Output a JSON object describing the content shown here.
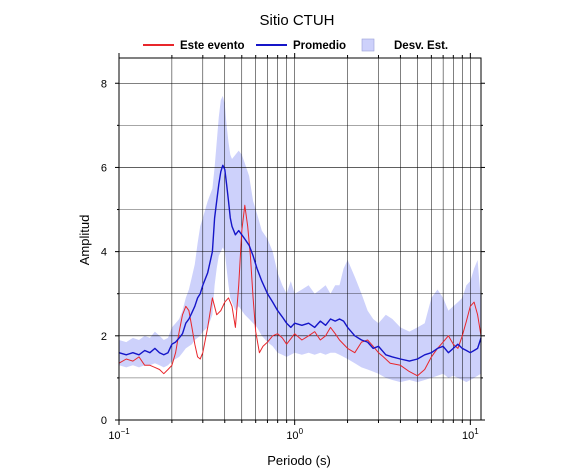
{
  "chart_data": {
    "type": "line",
    "title": "Sitio CTUH",
    "xlabel": "Periodo (s)",
    "ylabel": "Amplitud",
    "x_scale": "log",
    "xlim": [
      0.1,
      11.5
    ],
    "ylim": [
      0,
      8.6
    ],
    "grid": true,
    "legend_position": "top-center",
    "x_ticks": [
      {
        "value": 0.1,
        "base": "10",
        "exp": "−1"
      },
      {
        "value": 1,
        "base": "10",
        "exp": "0"
      },
      {
        "value": 10,
        "base": "10",
        "exp": "1"
      }
    ],
    "y_ticks": [
      {
        "value": 0,
        "label": "0"
      },
      {
        "value": 2,
        "label": "2"
      },
      {
        "value": 4,
        "label": "4"
      },
      {
        "value": 6,
        "label": "6"
      },
      {
        "value": 8,
        "label": "8"
      }
    ],
    "legend": [
      {
        "label": "Este evento",
        "kind": "line",
        "color": "#e8262b"
      },
      {
        "label": "Promedio",
        "kind": "line",
        "color": "#1515c8"
      },
      {
        "label": "Desv. Est.",
        "kind": "band",
        "color": "#cdd1fb"
      }
    ],
    "series": [
      {
        "name": "Este evento",
        "color": "#e8262b",
        "x": [
          0.1,
          0.11,
          0.12,
          0.13,
          0.14,
          0.15,
          0.16,
          0.17,
          0.18,
          0.19,
          0.2,
          0.21,
          0.22,
          0.23,
          0.24,
          0.25,
          0.26,
          0.27,
          0.28,
          0.29,
          0.3,
          0.32,
          0.34,
          0.36,
          0.38,
          0.4,
          0.42,
          0.44,
          0.46,
          0.48,
          0.5,
          0.52,
          0.54,
          0.56,
          0.58,
          0.6,
          0.63,
          0.66,
          0.7,
          0.75,
          0.8,
          0.85,
          0.9,
          1.0,
          1.1,
          1.2,
          1.3,
          1.4,
          1.5,
          1.6,
          1.7,
          1.8,
          2.0,
          2.2,
          2.4,
          2.6,
          2.8,
          3.0,
          3.2,
          3.5,
          4.0,
          4.5,
          5.0,
          5.5,
          6.0,
          6.5,
          7.0,
          7.5,
          8.0,
          8.5,
          9.0,
          9.5,
          10.0,
          10.5,
          11.0,
          11.5
        ],
        "values": [
          1.35,
          1.45,
          1.4,
          1.5,
          1.3,
          1.3,
          1.25,
          1.2,
          1.1,
          1.2,
          1.3,
          1.6,
          2.1,
          2.5,
          2.7,
          2.6,
          2.2,
          1.8,
          1.5,
          1.45,
          1.6,
          2.2,
          2.9,
          2.5,
          2.6,
          2.8,
          2.9,
          2.7,
          2.2,
          3.2,
          4.5,
          5.1,
          4.6,
          3.9,
          2.9,
          2.1,
          1.6,
          1.75,
          1.85,
          2.0,
          2.05,
          1.95,
          1.8,
          2.05,
          1.9,
          2.0,
          2.1,
          1.9,
          2.0,
          2.2,
          2.05,
          1.9,
          1.7,
          1.6,
          1.85,
          1.9,
          1.75,
          1.6,
          1.5,
          1.35,
          1.3,
          1.15,
          1.05,
          1.2,
          1.5,
          1.7,
          1.85,
          2.0,
          1.8,
          1.7,
          2.0,
          2.35,
          2.7,
          2.8,
          2.5,
          2.0
        ]
      },
      {
        "name": "Promedio",
        "color": "#1515c8",
        "x": [
          0.1,
          0.11,
          0.12,
          0.13,
          0.14,
          0.15,
          0.16,
          0.17,
          0.18,
          0.19,
          0.2,
          0.21,
          0.22,
          0.23,
          0.24,
          0.25,
          0.26,
          0.27,
          0.28,
          0.29,
          0.3,
          0.32,
          0.34,
          0.35,
          0.36,
          0.37,
          0.38,
          0.39,
          0.4,
          0.41,
          0.42,
          0.43,
          0.44,
          0.46,
          0.48,
          0.5,
          0.52,
          0.55,
          0.58,
          0.61,
          0.65,
          0.7,
          0.75,
          0.8,
          0.85,
          0.9,
          0.95,
          1.0,
          1.1,
          1.2,
          1.3,
          1.4,
          1.5,
          1.6,
          1.7,
          1.8,
          1.9,
          2.0,
          2.2,
          2.4,
          2.6,
          2.8,
          3.0,
          3.3,
          3.6,
          4.0,
          4.5,
          5.0,
          5.5,
          6.0,
          6.5,
          7.0,
          7.5,
          8.0,
          8.5,
          9.0,
          9.5,
          10.0,
          10.5,
          11.0,
          11.5
        ],
        "values": [
          1.6,
          1.55,
          1.6,
          1.55,
          1.65,
          1.6,
          1.7,
          1.6,
          1.55,
          1.6,
          1.8,
          1.85,
          1.95,
          2.05,
          2.3,
          2.4,
          2.55,
          2.7,
          2.9,
          3.0,
          3.2,
          3.5,
          4.0,
          4.8,
          5.2,
          5.6,
          5.9,
          6.05,
          5.95,
          5.6,
          5.2,
          4.8,
          4.6,
          4.4,
          4.5,
          4.4,
          4.3,
          4.15,
          3.9,
          3.6,
          3.3,
          3.0,
          2.8,
          2.6,
          2.45,
          2.3,
          2.2,
          2.3,
          2.25,
          2.3,
          2.2,
          2.35,
          2.25,
          2.4,
          2.35,
          2.4,
          2.35,
          2.2,
          2.0,
          1.9,
          1.85,
          1.7,
          1.75,
          1.55,
          1.5,
          1.45,
          1.4,
          1.45,
          1.55,
          1.6,
          1.7,
          1.75,
          1.6,
          1.7,
          1.8,
          1.7,
          1.65,
          1.6,
          1.65,
          1.7,
          1.95
        ]
      },
      {
        "name": "Desv. Est.",
        "color": "#cdd1fb",
        "x": [
          0.1,
          0.11,
          0.12,
          0.13,
          0.14,
          0.15,
          0.16,
          0.17,
          0.18,
          0.19,
          0.2,
          0.21,
          0.22,
          0.23,
          0.24,
          0.25,
          0.26,
          0.27,
          0.28,
          0.29,
          0.3,
          0.32,
          0.34,
          0.35,
          0.36,
          0.37,
          0.38,
          0.39,
          0.4,
          0.41,
          0.42,
          0.43,
          0.44,
          0.46,
          0.48,
          0.5,
          0.52,
          0.55,
          0.58,
          0.61,
          0.65,
          0.7,
          0.75,
          0.8,
          0.85,
          0.9,
          0.95,
          1.0,
          1.1,
          1.2,
          1.3,
          1.4,
          1.5,
          1.6,
          1.7,
          1.8,
          1.9,
          2.0,
          2.2,
          2.4,
          2.6,
          2.8,
          3.0,
          3.3,
          3.6,
          4.0,
          4.5,
          5.0,
          5.5,
          6.0,
          6.5,
          7.0,
          7.5,
          8.0,
          8.5,
          9.0,
          9.5,
          10.0,
          10.5,
          11.0,
          11.5
        ],
        "upper": [
          1.9,
          1.85,
          1.95,
          1.9,
          2.0,
          1.95,
          2.1,
          2.0,
          1.9,
          1.95,
          2.2,
          2.3,
          2.4,
          2.6,
          2.9,
          3.1,
          3.4,
          3.7,
          4.2,
          4.6,
          4.8,
          5.2,
          5.5,
          6.0,
          6.6,
          7.2,
          7.6,
          7.7,
          7.5,
          7.0,
          6.6,
          6.3,
          6.2,
          6.3,
          6.4,
          6.3,
          6.1,
          5.8,
          5.2,
          4.9,
          4.5,
          4.3,
          4.0,
          3.5,
          3.2,
          3.0,
          3.3,
          3.0,
          3.1,
          3.2,
          3.0,
          3.1,
          3.2,
          3.0,
          3.2,
          3.2,
          3.6,
          3.8,
          3.4,
          3.0,
          2.6,
          2.4,
          2.3,
          2.5,
          2.4,
          2.2,
          2.1,
          2.2,
          2.3,
          2.9,
          3.1,
          2.9,
          2.6,
          2.7,
          2.8,
          2.9,
          3.2,
          3.3,
          3.6,
          3.8,
          2.8
        ],
        "lower": [
          1.3,
          1.25,
          1.3,
          1.25,
          1.3,
          1.3,
          1.35,
          1.3,
          1.25,
          1.3,
          1.4,
          1.45,
          1.5,
          1.6,
          1.7,
          1.75,
          1.8,
          1.9,
          1.95,
          2.0,
          2.1,
          2.2,
          2.5,
          3.2,
          3.6,
          3.9,
          4.0,
          4.1,
          4.0,
          3.6,
          3.2,
          2.9,
          2.8,
          2.6,
          2.7,
          2.6,
          2.5,
          2.4,
          2.3,
          2.2,
          2.0,
          1.85,
          1.75,
          1.6,
          1.55,
          1.5,
          1.55,
          1.6,
          1.55,
          1.6,
          1.55,
          1.6,
          1.55,
          1.6,
          1.6,
          1.55,
          1.5,
          1.45,
          1.35,
          1.25,
          1.2,
          1.15,
          1.1,
          1.0,
          0.95,
          0.9,
          0.95,
          0.9,
          0.95,
          1.0,
          1.05,
          1.1,
          1.0,
          1.05,
          1.0,
          0.95,
          0.9,
          0.95,
          1.0,
          1.05,
          1.1
        ]
      }
    ]
  }
}
